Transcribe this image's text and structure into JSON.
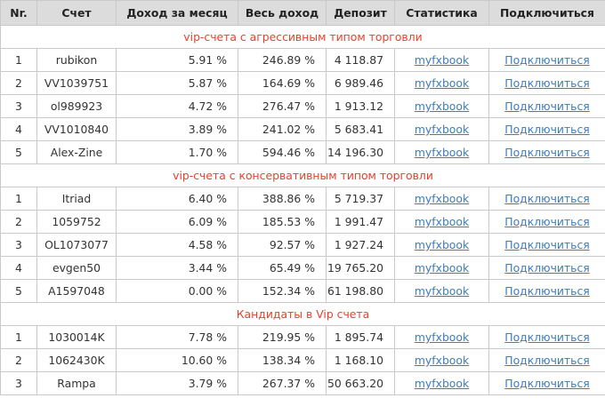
{
  "headers": [
    "Nr.",
    "Счет",
    "Доход за месяц",
    "Весь доход",
    "Депозит",
    "Статистика",
    "Подключиться"
  ],
  "sections": [
    {
      "title": "vip-счета с агрессивным типом торговли",
      "rows": [
        {
          "nr": "1",
          "account": "rubikon",
          "monthly": "5.91 %",
          "total": "246.89 %",
          "deposit": "4 118.87",
          "stats": "myfxbook",
          "connect": "Подключиться"
        },
        {
          "nr": "2",
          "account": "VV1039751",
          "monthly": "5.87 %",
          "total": "164.69 %",
          "deposit": "6 989.46",
          "stats": "myfxbook",
          "connect": "Подключиться"
        },
        {
          "nr": "3",
          "account": "ol989923",
          "monthly": "4.72 %",
          "total": "276.47 %",
          "deposit": "1 913.12",
          "stats": "myfxbook",
          "connect": "Подключиться"
        },
        {
          "nr": "4",
          "account": "VV1010840",
          "monthly": "3.89 %",
          "total": "241.02 %",
          "deposit": "5 683.41",
          "stats": "myfxbook",
          "connect": "Подключиться"
        },
        {
          "nr": "5",
          "account": "Alex-Zine",
          "monthly": "1.70 %",
          "total": "594.46 %",
          "deposit": "14 196.30",
          "stats": "myfxbook",
          "connect": "Подключиться"
        }
      ]
    },
    {
      "title": "vip-счета с консервативным типом торговли",
      "rows": [
        {
          "nr": "1",
          "account": "Itriad",
          "monthly": "6.40 %",
          "total": "388.86 %",
          "deposit": "5 719.37",
          "stats": "myfxbook",
          "connect": "Подключиться"
        },
        {
          "nr": "2",
          "account": "1059752",
          "monthly": "6.09 %",
          "total": "185.53 %",
          "deposit": "1 991.47",
          "stats": "myfxbook",
          "connect": "Подключиться"
        },
        {
          "nr": "3",
          "account": "OL1073077",
          "monthly": "4.58 %",
          "total": "92.57 %",
          "deposit": "1 927.24",
          "stats": "myfxbook",
          "connect": "Подключиться"
        },
        {
          "nr": "4",
          "account": "evgen50",
          "monthly": "3.44 %",
          "total": "65.49 %",
          "deposit": "19 765.20",
          "stats": "myfxbook",
          "connect": "Подключиться"
        },
        {
          "nr": "5",
          "account": "A1597048",
          "monthly": "0.00 %",
          "total": "152.34 %",
          "deposit": "61 198.80",
          "stats": "myfxbook",
          "connect": "Подключиться"
        }
      ]
    },
    {
      "title": "Кандидаты в Vip счета",
      "rows": [
        {
          "nr": "1",
          "account": "1030014K",
          "monthly": "7.78 %",
          "total": "219.95 %",
          "deposit": "1 895.74",
          "stats": "myfxbook",
          "connect": "Подключиться"
        },
        {
          "nr": "2",
          "account": "1062430K",
          "monthly": "10.60 %",
          "total": "138.34 %",
          "deposit": "1 168.10",
          "stats": "myfxbook",
          "connect": "Подключиться"
        },
        {
          "nr": "3",
          "account": "Rampa",
          "monthly": "3.79 %",
          "total": "267.37 %",
          "deposit": "50 663.20",
          "stats": "myfxbook",
          "connect": "Подключиться"
        }
      ]
    }
  ],
  "colors": {
    "header_bg": "#dcdcdc",
    "section_title": "#e8402f",
    "link": "#3d7dbb",
    "border": "#c9c9c9"
  }
}
